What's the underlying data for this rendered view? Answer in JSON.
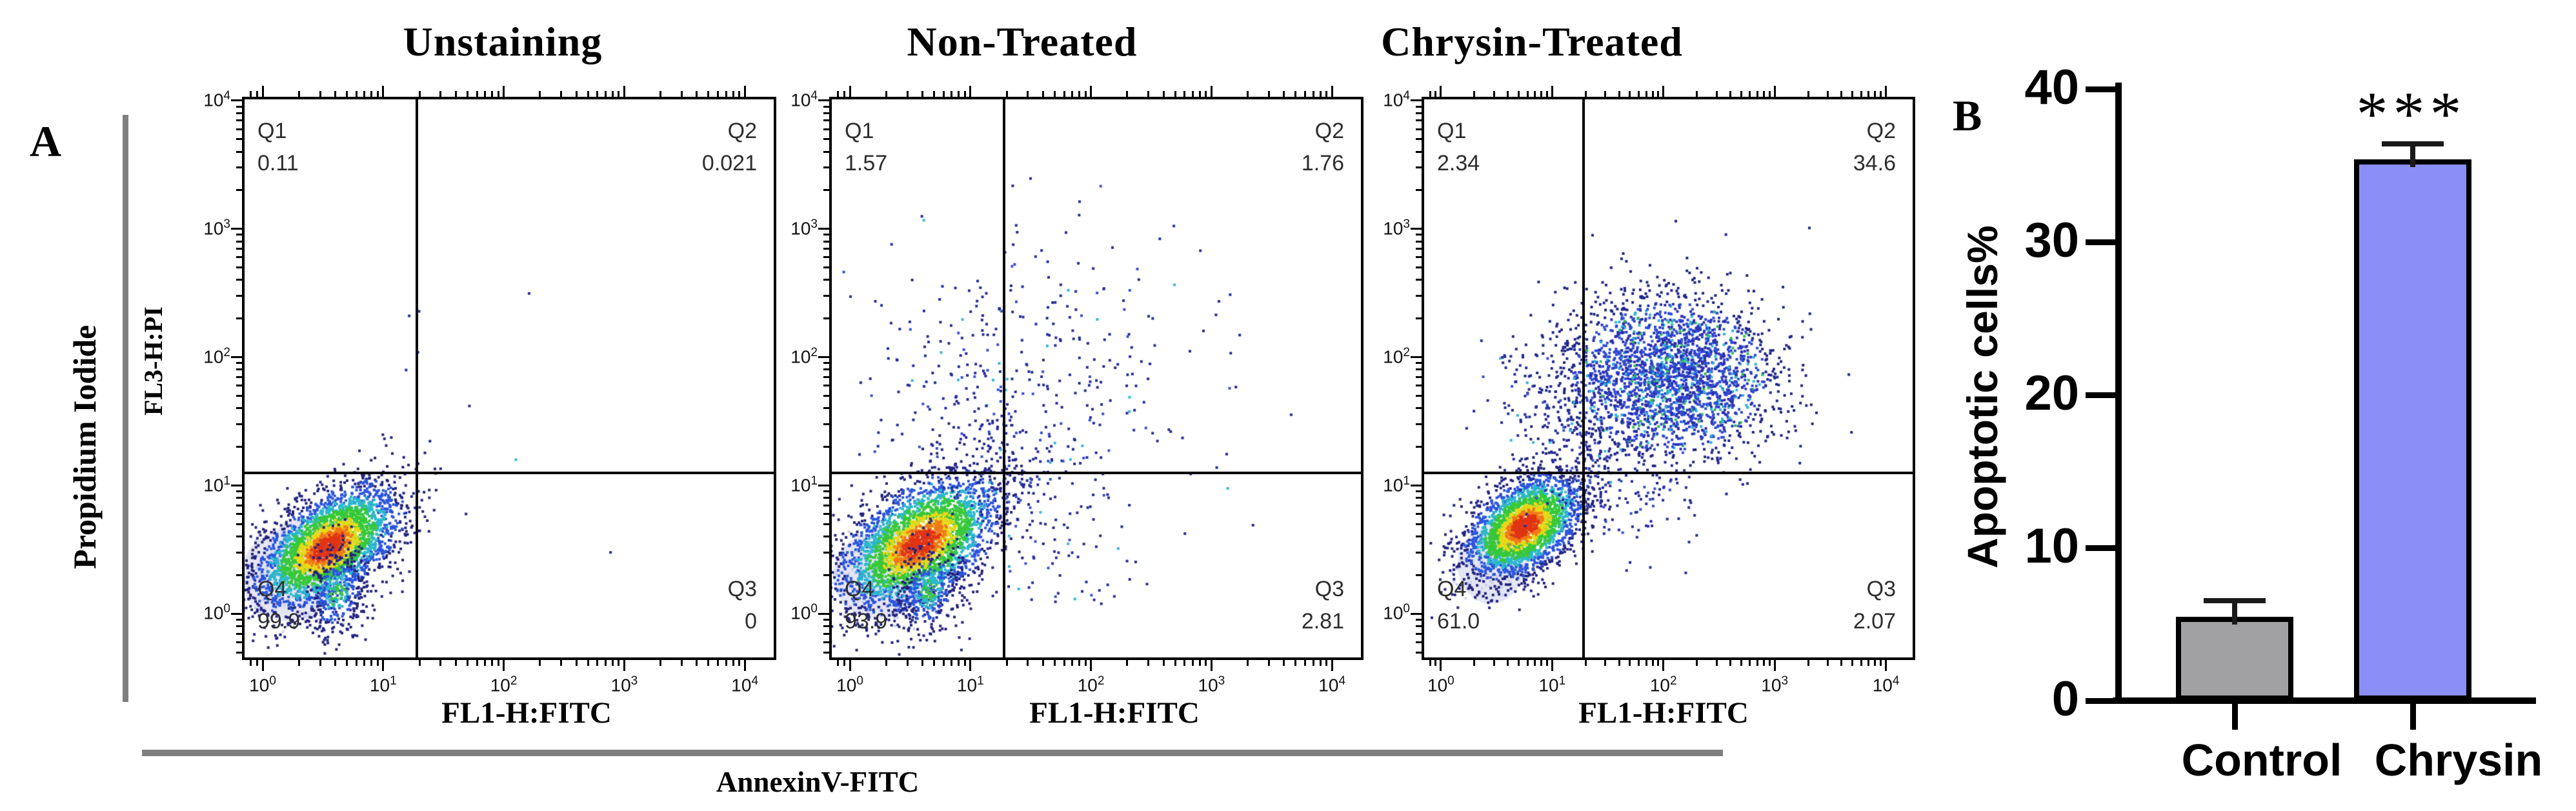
{
  "panel_a": {
    "label": "A",
    "group_y_label": "Propidium Iodide",
    "group_x_label": "AnnexinV-FITC"
  },
  "panel_b": {
    "label": "B"
  },
  "chart_data": [
    {
      "type": "scatter",
      "subtype": "flow-cytometry-density",
      "title": "Unstaining",
      "xlabel": "FL1-H:FITC",
      "ylabel": "FL3-H:PI",
      "x_log_range": [
        -0.15,
        4.24
      ],
      "y_log_range": [
        -0.34,
        4.01
      ],
      "tick_exponents": [
        0,
        1,
        2,
        3,
        4
      ],
      "gates": {
        "x_log": 1.28,
        "y_log": 1.1
      },
      "quadrants": [
        {
          "id": "Q1",
          "value": "0.11"
        },
        {
          "id": "Q2",
          "value": "0.021"
        },
        {
          "id": "Q3",
          "value": "0"
        },
        {
          "id": "Q4",
          "value": "99.9"
        }
      ],
      "clusters": [
        {
          "kind": "pale",
          "cx": 0.22,
          "cy": 0.3,
          "rx": 0.4,
          "ry": 0.36
        },
        {
          "kind": "density",
          "cx": 0.54,
          "cy": 0.52,
          "sx": 0.3,
          "sy": 0.24,
          "corr": 0.55,
          "n": 3400
        },
        {
          "kind": "density",
          "cx": 0.62,
          "cy": 0.16,
          "sx": 0.14,
          "sy": 0.2,
          "corr": 0.2,
          "n": 380,
          "u_add": 0.35
        },
        {
          "kind": "sparse",
          "cx": 1.7,
          "cy": 1.9,
          "sx": 0.65,
          "sy": 0.6,
          "n": 8
        }
      ]
    },
    {
      "type": "scatter",
      "subtype": "flow-cytometry-density",
      "title": "Non-Treated",
      "xlabel": "FL1-H:FITC",
      "ylabel": "",
      "x_log_range": [
        -0.15,
        4.24
      ],
      "y_log_range": [
        -0.34,
        4.01
      ],
      "tick_exponents": [
        0,
        1,
        2,
        3,
        4
      ],
      "gates": {
        "x_log": 1.28,
        "y_log": 1.1
      },
      "quadrants": [
        {
          "id": "Q1",
          "value": "1.57"
        },
        {
          "id": "Q2",
          "value": "1.76"
        },
        {
          "id": "Q3",
          "value": "2.81"
        },
        {
          "id": "Q4",
          "value": "93.9"
        }
      ],
      "clusters": [
        {
          "kind": "pale",
          "cx": 0.24,
          "cy": 0.3,
          "rx": 0.38,
          "ry": 0.34
        },
        {
          "kind": "density",
          "cx": 0.58,
          "cy": 0.55,
          "sx": 0.33,
          "sy": 0.26,
          "corr": 0.5,
          "n": 3400
        },
        {
          "kind": "density",
          "cx": 0.66,
          "cy": 0.18,
          "sx": 0.15,
          "sy": 0.2,
          "corr": 0.2,
          "n": 350,
          "u_add": 0.35
        },
        {
          "kind": "sparse",
          "cx": 0.95,
          "cy": 1.75,
          "sx": 0.42,
          "sy": 0.52,
          "n": 210
        },
        {
          "kind": "sparse",
          "cx": 2.0,
          "cy": 1.9,
          "sx": 0.6,
          "sy": 0.55,
          "n": 170
        },
        {
          "kind": "sparse",
          "cx": 1.75,
          "cy": 0.6,
          "sx": 0.45,
          "sy": 0.35,
          "n": 90
        },
        {
          "kind": "sparse",
          "cx": 1.3,
          "cy": 1.1,
          "sx": 0.28,
          "sy": 0.22,
          "n": 110
        }
      ]
    },
    {
      "type": "scatter",
      "subtype": "flow-cytometry-density",
      "title": "Chrysin-Treated",
      "xlabel": "FL1-H:FITC",
      "ylabel": "",
      "x_log_range": [
        -0.15,
        4.24
      ],
      "y_log_range": [
        -0.34,
        4.01
      ],
      "tick_exponents": [
        0,
        1,
        2,
        3,
        4
      ],
      "gates": {
        "x_log": 1.28,
        "y_log": 1.1
      },
      "quadrants": [
        {
          "id": "Q1",
          "value": "2.34"
        },
        {
          "id": "Q2",
          "value": "34.6"
        },
        {
          "id": "Q3",
          "value": "2.07"
        },
        {
          "id": "Q4",
          "value": "61.0"
        }
      ],
      "clusters": [
        {
          "kind": "pale",
          "cx": 0.45,
          "cy": 0.38,
          "rx": 0.3,
          "ry": 0.3
        },
        {
          "kind": "density",
          "cx": 0.75,
          "cy": 0.68,
          "sx": 0.26,
          "sy": 0.2,
          "corr": 0.45,
          "n": 2800
        },
        {
          "kind": "cloud",
          "cx": 2.05,
          "cy": 1.85,
          "sx": 0.48,
          "sy": 0.32,
          "n": 2600
        },
        {
          "kind": "sparse",
          "cx": 1.35,
          "cy": 1.35,
          "sx": 0.3,
          "sy": 0.28,
          "n": 170
        },
        {
          "kind": "sparse",
          "cx": 1.7,
          "cy": 0.9,
          "sx": 0.4,
          "sy": 0.22,
          "n": 110
        },
        {
          "kind": "sparse",
          "cx": 0.85,
          "cy": 1.6,
          "sx": 0.28,
          "sy": 0.3,
          "n": 90
        }
      ]
    },
    {
      "type": "bar",
      "categories": [
        "Control",
        "Chrysin"
      ],
      "values": [
        5.5,
        35.4
      ],
      "errors_upper": [
        1.05,
        1.0
      ],
      "bar_colors": [
        "#a1a1a3",
        "#8c8ef8"
      ],
      "bar_border_color": "#000000",
      "ylabel": "Apoptotic cells%",
      "ylim": [
        0,
        40
      ],
      "yticks": [
        0,
        10,
        20,
        30,
        40
      ],
      "significance": [
        "",
        "***"
      ]
    }
  ]
}
